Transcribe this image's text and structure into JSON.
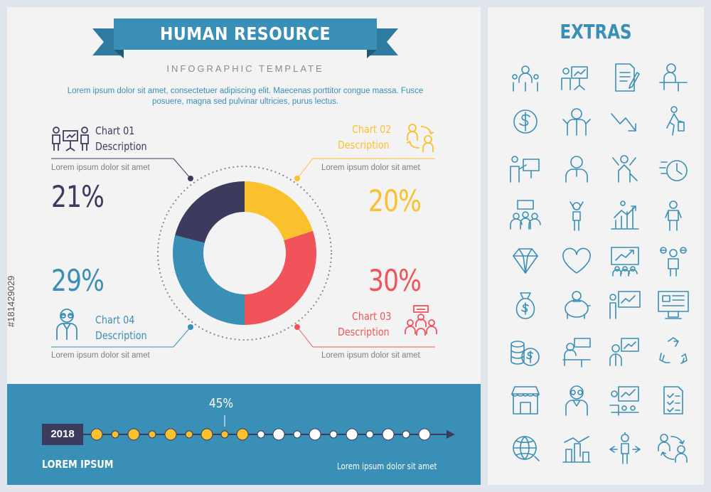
{
  "header": {
    "title": "HUMAN RESOURCE",
    "subtitle": "INFOGRAPHIC TEMPLATE",
    "intro": "Lorem ipsum dolor sit amet, consectetuer adipiscing elit. Maecenas porttitor congue massa. Fusce posuere, magna sed pulvinar ultricies, purus lectus."
  },
  "colors": {
    "blue": "#3a8fb7",
    "navy": "#3b3b5e",
    "yellow": "#fbc02d",
    "red": "#f0545a",
    "panel": "#f3f3f3"
  },
  "charts": [
    {
      "label_1": "Chart 01",
      "label_2": "Description",
      "lorem": "Lorem ipsum dolor sit amet",
      "percent": "21%",
      "icon": "presentation-team-icon"
    },
    {
      "label_1": "Chart 02",
      "label_2": "Description",
      "lorem": "Lorem ipsum dolor sit amet",
      "percent": "20%",
      "icon": "exchange-people-icon"
    },
    {
      "label_1": "Chart 03",
      "label_2": "Description",
      "lorem": "Lorem ipsum dolor sit amet",
      "percent": "30%",
      "icon": "team-meeting-icon"
    },
    {
      "label_1": "Chart 04",
      "label_2": "Description",
      "lorem": "Lorem ipsum dolor sit amet",
      "percent": "29%",
      "icon": "employee-glasses-icon"
    }
  ],
  "chart_data": {
    "type": "pie",
    "donut": true,
    "values": [
      20,
      30,
      29,
      21
    ],
    "colors": [
      "#fbc02d",
      "#f0545a",
      "#3a8fb7",
      "#3b3b5e"
    ]
  },
  "timeline": {
    "year": "2018",
    "progress_label": "45%",
    "progress": 0.45,
    "footer_left": "LOREM IPSUM",
    "footer_right": "Lorem ipsum dolor sit amet"
  },
  "extras": {
    "title": "EXTRAS",
    "icons": [
      "team-structure-icon",
      "presentation-icon",
      "document-edit-icon",
      "desk-worker-icon",
      "dollar-icon",
      "businessman-icon",
      "decline-chart-icon",
      "walking-businessman-icon",
      "lecture-icon",
      "employee-icon",
      "stress-icon",
      "deadline-clock-icon",
      "meeting-icon",
      "success-man-icon",
      "career-growth-icon",
      "standing-man-icon",
      "diamond-icon",
      "heart-icon",
      "growth-presentation-icon",
      "currency-man-icon",
      "money-bag-icon",
      "piggy-bank-icon",
      "analytics-board-icon",
      "monitor-dashboard-icon",
      "coins-icon",
      "worker-desk-icon",
      "report-board-icon",
      "recycle-icon",
      "shop-icon",
      "nerd-employee-icon",
      "training-icon",
      "checklist-icon",
      "global-icon",
      "team-chart-icon",
      "direction-man-icon",
      "exchange-icon"
    ]
  },
  "credit": "#181429029"
}
